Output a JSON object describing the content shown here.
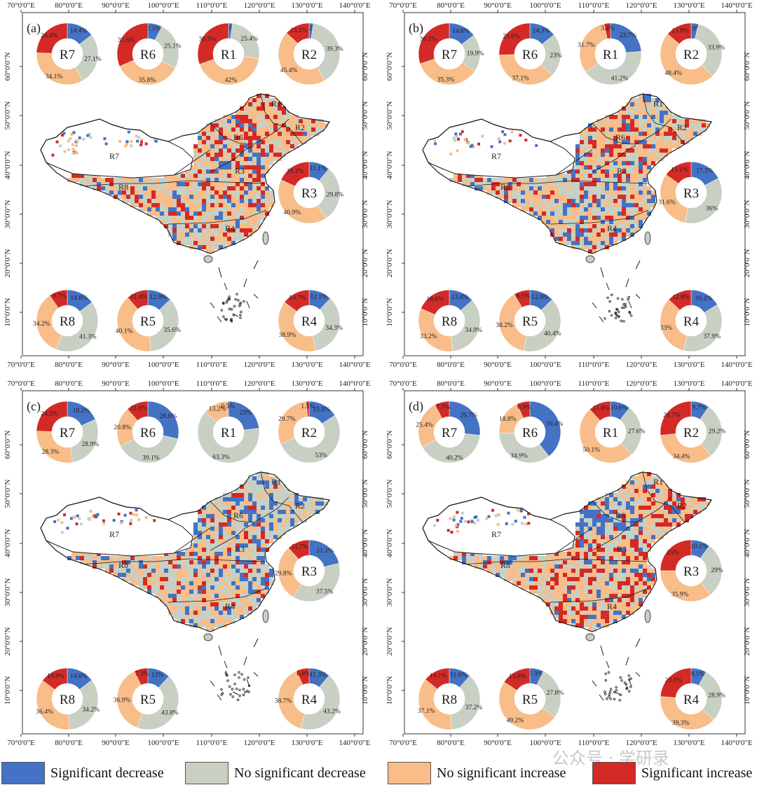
{
  "colors": {
    "sig_decrease": "#4472c4",
    "no_sig_decrease": "#c8d0c4",
    "no_sig_increase": "#f8bd88",
    "sig_increase": "#d42a26",
    "border": "#1a1a1a",
    "frame": "#333333"
  },
  "axes": {
    "x_ticks": [
      "70°0'0\"E",
      "80°0'0\"E",
      "90°0'0\"E",
      "100°0'0\"E",
      "110°0'0\"E",
      "120°0'0\"E",
      "130°0'0\"E",
      "140°0'0\"E"
    ],
    "y_ticks": [
      "10°0'0\"N",
      "20°0'0\"N",
      "30°0'0\"N",
      "40°0'0\"N",
      "50°0'0\"N",
      "60°0'0\"N"
    ]
  },
  "map_labels": [
    "R1",
    "R2",
    "R3",
    "R4",
    "R6",
    "R7",
    "R8"
  ],
  "legend": [
    {
      "key": "sig_decrease",
      "label": "Significant decrease"
    },
    {
      "key": "no_sig_decrease",
      "label": "No significant decrease"
    },
    {
      "key": "no_sig_increase",
      "label": "No significant increase"
    },
    {
      "key": "sig_increase",
      "label": "Significant increase"
    }
  ],
  "watermark": "公众号 · 学研录",
  "chart_data": [
    {
      "type": "pie",
      "panel": "(a)",
      "series_order": [
        "sig_decrease",
        "no_sig_decrease",
        "no_sig_increase",
        "sig_increase"
      ],
      "regions": [
        {
          "region": "R7",
          "values": [
            14.4,
            27.1,
            34.1,
            24.4
          ],
          "labels": [
            "14.4%",
            "27.1%",
            "34.1%",
            "24.4%"
          ]
        },
        {
          "region": "R6",
          "values": [
            7.5,
            25.1,
            35.8,
            31.6
          ],
          "labels": [
            "7.5%",
            "25.1%",
            "35.8%",
            "31.6%"
          ]
        },
        {
          "region": "R1",
          "values": [
            2.1,
            25.4,
            42.0,
            30.5
          ],
          "labels": [
            "2.1%",
            "25.4%",
            "42%",
            "30.5%"
          ]
        },
        {
          "region": "R2",
          "values": [
            2.2,
            39.3,
            45.4,
            13.1
          ],
          "labels": [
            "2.2%",
            "39.3%",
            "45.4%",
            "13.1%"
          ]
        },
        {
          "region": "R3",
          "values": [
            11.1,
            29.8,
            40.9,
            18.2
          ],
          "labels": [
            "11.1%",
            "29.8%",
            "40.9%",
            "18.2%"
          ]
        },
        {
          "region": "R8",
          "values": [
            14.8,
            41.3,
            34.2,
            9.7
          ],
          "labels": [
            "14.8%",
            "41.3%",
            "34.2%",
            "9.7%"
          ]
        },
        {
          "region": "R5",
          "values": [
            12.9,
            35.6,
            40.1,
            11.4
          ],
          "labels": [
            "12.9%",
            "35.6%",
            "40.1%",
            "11.4%"
          ]
        },
        {
          "region": "R4",
          "values": [
            12.1,
            34.3,
            38.9,
            14.7
          ],
          "labels": [
            "12.1%",
            "34.3%",
            "38.9%",
            "14.7%"
          ]
        }
      ]
    },
    {
      "type": "pie",
      "panel": "(b)",
      "series_order": [
        "sig_decrease",
        "no_sig_decrease",
        "no_sig_increase",
        "sig_increase"
      ],
      "regions": [
        {
          "region": "R7",
          "values": [
            14.6,
            19.9,
            35.3,
            30.2
          ],
          "labels": [
            "14.6%",
            "19.9%",
            "35.3%",
            "30.2%"
          ]
        },
        {
          "region": "R6",
          "values": [
            14.3,
            23.0,
            37.1,
            25.6
          ],
          "labels": [
            "14.3%",
            "23%",
            "37.1%",
            "25.6%"
          ]
        },
        {
          "region": "R1",
          "values": [
            23.7,
            41.2,
            31.7,
            3.4
          ],
          "labels": [
            "23.7%",
            "41.2%",
            "31.7%",
            "3.4%"
          ]
        },
        {
          "region": "R2",
          "values": [
            3.9,
            33.9,
            48.4,
            13.8
          ],
          "labels": [
            "3.9%",
            "33.9%",
            "48.4%",
            "13.8%"
          ]
        },
        {
          "region": "R3",
          "values": [
            17.3,
            36.0,
            31.6,
            15.1
          ],
          "labels": [
            "17.3%",
            "36%",
            "31.6%",
            "15.1%"
          ]
        },
        {
          "region": "R8",
          "values": [
            13.4,
            34.9,
            33.2,
            18.6
          ],
          "labels": [
            "13.4%",
            "34.9%",
            "33.2%",
            "18.6%"
          ]
        },
        {
          "region": "R5",
          "values": [
            12.9,
            40.4,
            38.2,
            8.5
          ],
          "labels": [
            "12.9%",
            "40.4%",
            "38.2%",
            "8.5%"
          ]
        },
        {
          "region": "R4",
          "values": [
            16.2,
            37.9,
            33.0,
            12.9
          ],
          "labels": [
            "16.2%",
            "37.9%",
            "33%",
            "12.9%"
          ]
        }
      ]
    },
    {
      "type": "pie",
      "panel": "(c)",
      "series_order": [
        "sig_decrease",
        "no_sig_decrease",
        "no_sig_increase",
        "sig_increase"
      ],
      "regions": [
        {
          "region": "R7",
          "values": [
            18.2,
            28.9,
            28.3,
            24.5
          ],
          "labels": [
            "18.2%",
            "28.9%",
            "28.3%",
            "24.5%"
          ]
        },
        {
          "region": "R6",
          "values": [
            28.6,
            39.1,
            20.8,
            11.6
          ],
          "labels": [
            "28.6%",
            "39.1%",
            "20.8%",
            "11.6%"
          ]
        },
        {
          "region": "R1",
          "values": [
            23.0,
            63.3,
            13.2,
            0.5
          ],
          "labels": [
            "23%",
            "63.3%",
            "13.2%",
            "0.5%"
          ]
        },
        {
          "region": "R2",
          "values": [
            15.8,
            53.0,
            29.7,
            1.5
          ],
          "labels": [
            "15.8%",
            "53%",
            "29.7%",
            "1.5%"
          ]
        },
        {
          "region": "R3",
          "values": [
            21.1,
            37.5,
            29.8,
            11.7
          ],
          "labels": [
            "21.1%",
            "37.5%",
            "29.8%",
            "11.7%"
          ]
        },
        {
          "region": "R8",
          "values": [
            14.6,
            34.2,
            36.4,
            14.8
          ],
          "labels": [
            "14.6%",
            "34.2%",
            "36.4%",
            "14.8%"
          ]
        },
        {
          "region": "R5",
          "values": [
            12.0,
            43.8,
            36.9,
            7.3
          ],
          "labels": [
            "12%",
            "43.8%",
            "36.9%",
            "7.3%"
          ]
        },
        {
          "region": "R4",
          "values": [
            11.3,
            43.2,
            38.7,
            6.8
          ],
          "labels": [
            "11.3%",
            "43.2%",
            "38.7%",
            "6.8%"
          ]
        }
      ]
    },
    {
      "type": "pie",
      "panel": "(d)",
      "series_order": [
        "sig_decrease",
        "no_sig_decrease",
        "no_sig_increase",
        "sig_increase"
      ],
      "regions": [
        {
          "region": "R7",
          "values": [
            26.7,
            40.2,
            25.4,
            7.7
          ],
          "labels": [
            "26.7%",
            "40.2%",
            "25.4%",
            "7.7%"
          ]
        },
        {
          "region": "R6",
          "values": [
            39.4,
            34.9,
            18.8,
            6.9
          ],
          "labels": [
            "39.4%",
            "34.9%",
            "18.8%",
            "6.9%"
          ]
        },
        {
          "region": "R1",
          "values": [
            10.6,
            27.6,
            50.1,
            11.8
          ],
          "labels": [
            "10.6%",
            "27.6%",
            "50.1%",
            "11.8%"
          ]
        },
        {
          "region": "R2",
          "values": [
            9.7,
            29.2,
            34.4,
            26.7
          ],
          "labels": [
            "9.7%",
            "29.2%",
            "34.4%",
            "26.7%"
          ]
        },
        {
          "region": "R3",
          "values": [
            10.1,
            29.0,
            35.9,
            25.0
          ],
          "labels": [
            "10.1%",
            "29%",
            "35.9%",
            "25%"
          ]
        },
        {
          "region": "R8",
          "values": [
            11.6,
            37.2,
            37.1,
            14.1
          ],
          "labels": [
            "11.6%",
            "37.2%",
            "37.1%",
            "14.1%"
          ]
        },
        {
          "region": "R5",
          "values": [
            7.3,
            27.8,
            49.2,
            15.8
          ],
          "labels": [
            "7.3%",
            "27.8%",
            "49.2%",
            "15.8%"
          ]
        },
        {
          "region": "R4",
          "values": [
            8.1,
            28.9,
            39.3,
            23.8
          ],
          "labels": [
            "8.1%",
            "28.9%",
            "39.3%",
            "23.8%"
          ]
        }
      ]
    }
  ]
}
